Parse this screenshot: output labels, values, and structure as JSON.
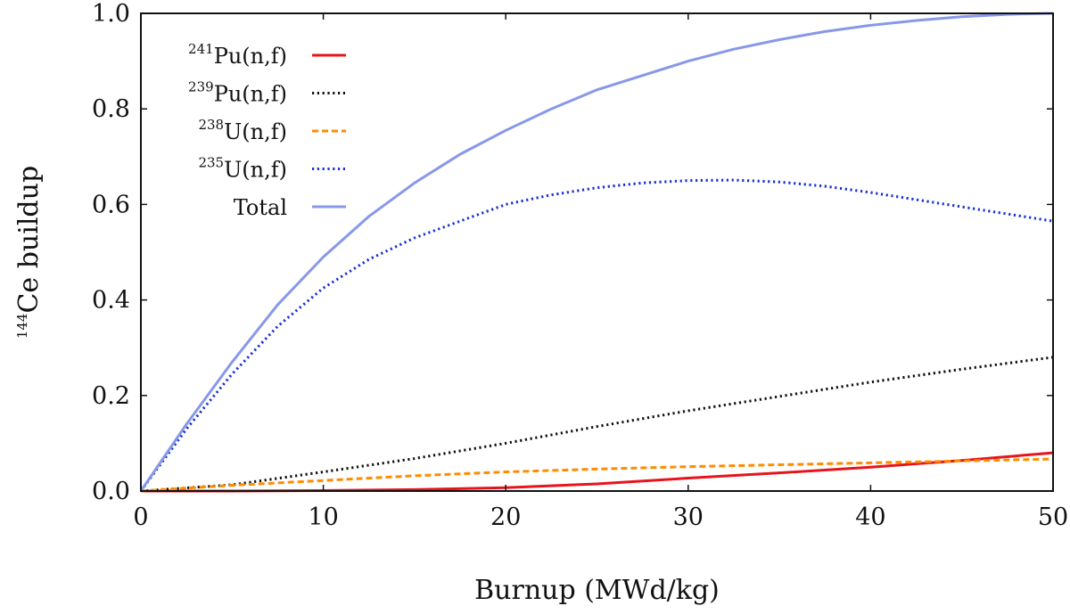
{
  "chart_data": {
    "type": "line",
    "title": "",
    "xlabel": "Burnup (MWd/kg)",
    "ylabel_superscript": "144",
    "ylabel": "Ce buildup",
    "xlim": [
      0,
      50
    ],
    "ylim": [
      0,
      1.0
    ],
    "x_ticks": [
      "0",
      "10",
      "20",
      "30",
      "40",
      "50"
    ],
    "y_ticks": [
      "0.0",
      "0.2",
      "0.4",
      "0.6",
      "0.8",
      "1.0"
    ],
    "grid": false,
    "legend_position": "top-left",
    "series": [
      {
        "name": "Pu(n,f)",
        "superscript": "241",
        "color": "#e8141c",
        "dash": "solid",
        "x": [
          0,
          5,
          10,
          15,
          20,
          25,
          30,
          35,
          40,
          45,
          50
        ],
        "y": [
          0,
          0.0,
          0.001,
          0.003,
          0.007,
          0.015,
          0.027,
          0.038,
          0.05,
          0.064,
          0.08
        ]
      },
      {
        "name": "Pu(n,f)",
        "superscript": "239",
        "color": "#111111",
        "dash": "dotted",
        "x": [
          0,
          5,
          10,
          15,
          20,
          25,
          30,
          35,
          40,
          45,
          50
        ],
        "y": [
          0,
          0.013,
          0.04,
          0.068,
          0.1,
          0.135,
          0.168,
          0.198,
          0.228,
          0.255,
          0.28
        ]
      },
      {
        "name": "U(n,f)",
        "superscript": "238",
        "color": "#ff8c00",
        "dash": "dashed",
        "x": [
          0,
          5,
          10,
          15,
          20,
          25,
          30,
          35,
          40,
          45,
          50
        ],
        "y": [
          0,
          0.012,
          0.022,
          0.032,
          0.04,
          0.046,
          0.051,
          0.055,
          0.059,
          0.063,
          0.067
        ]
      },
      {
        "name": "U(n,f)",
        "superscript": "235",
        "color": "#1a2fd6",
        "dash": "dotted",
        "x": [
          0,
          2.5,
          5,
          7.5,
          10,
          12.5,
          15,
          17.5,
          20,
          22.5,
          25,
          27.5,
          30,
          32.5,
          35,
          37.5,
          40,
          42.5,
          45,
          47.5,
          50
        ],
        "y": [
          0,
          0.13,
          0.245,
          0.345,
          0.425,
          0.485,
          0.53,
          0.565,
          0.6,
          0.62,
          0.635,
          0.645,
          0.65,
          0.651,
          0.647,
          0.638,
          0.625,
          0.61,
          0.595,
          0.58,
          0.565
        ]
      },
      {
        "name": "Total",
        "superscript": "",
        "color": "#8898e8",
        "dash": "solid",
        "x": [
          0,
          2.5,
          5,
          7.5,
          10,
          12.5,
          15,
          17.5,
          20,
          22.5,
          25,
          27.5,
          30,
          32.5,
          35,
          37.5,
          40,
          42.5,
          45,
          47.5,
          50
        ],
        "y": [
          0,
          0.14,
          0.27,
          0.39,
          0.49,
          0.575,
          0.645,
          0.705,
          0.755,
          0.8,
          0.84,
          0.87,
          0.9,
          0.925,
          0.945,
          0.962,
          0.975,
          0.985,
          0.993,
          0.998,
          1.0
        ]
      }
    ]
  }
}
